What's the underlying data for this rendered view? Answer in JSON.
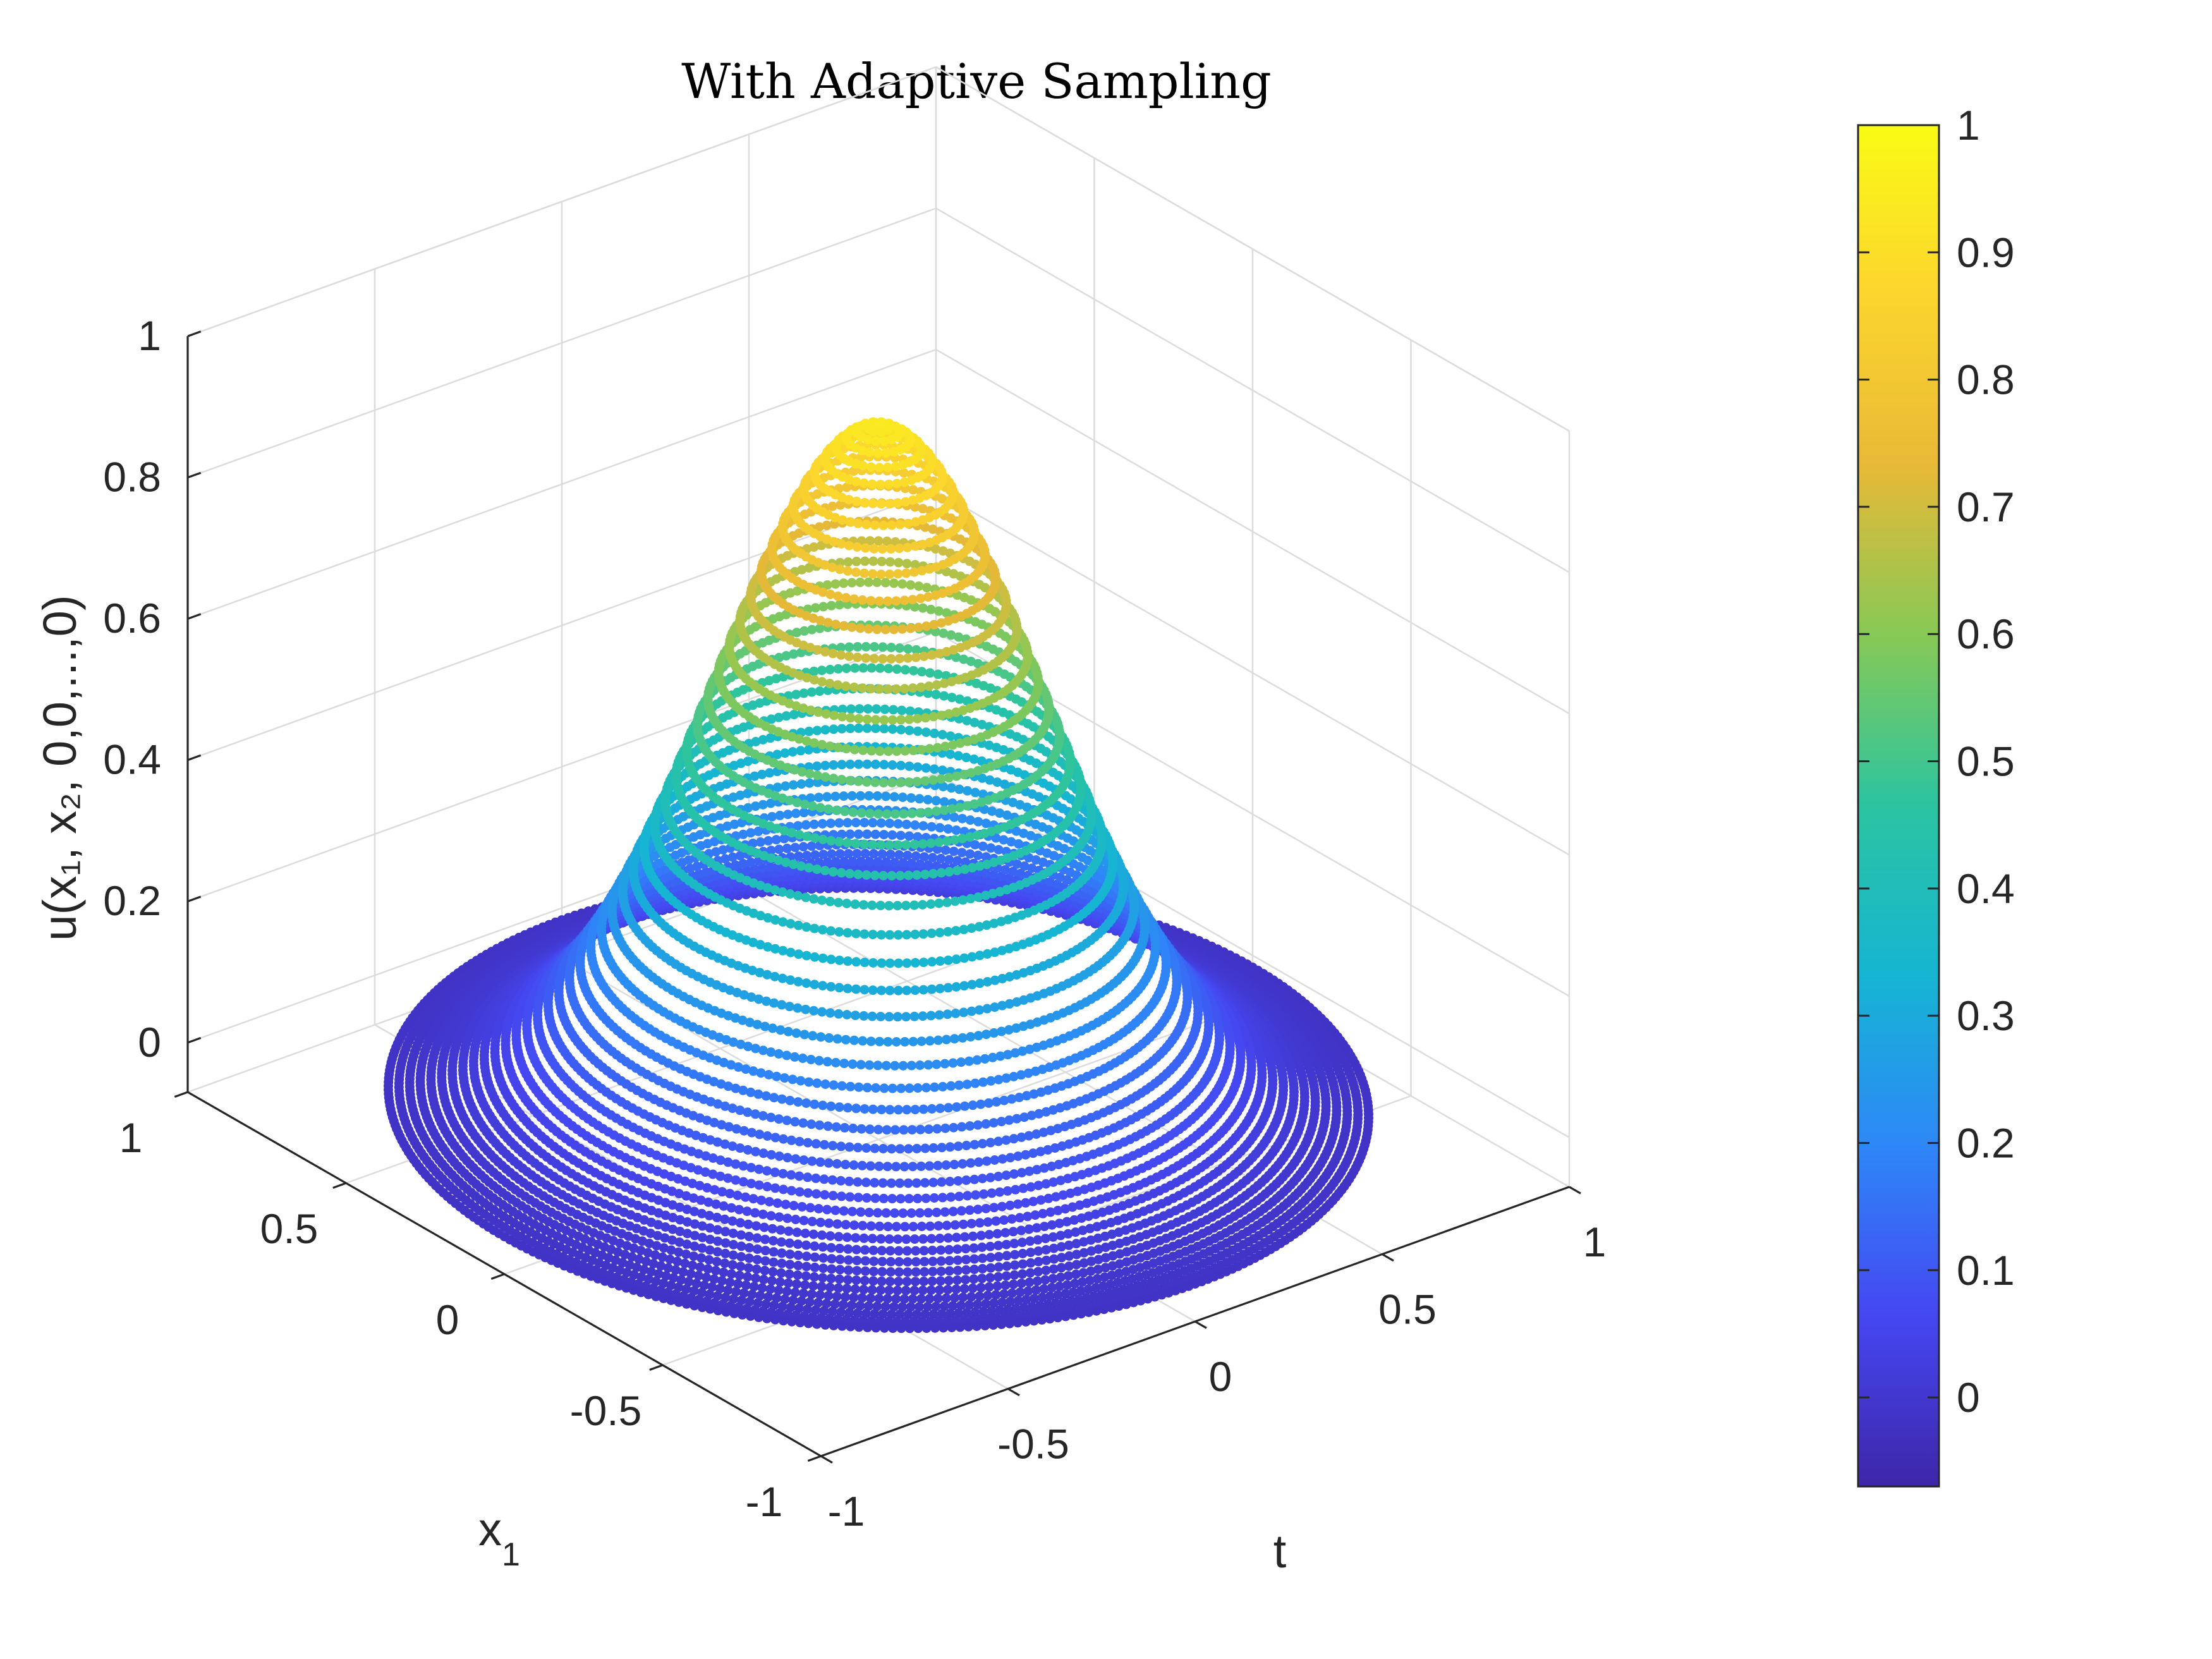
{
  "chart_data": {
    "type": "scatter",
    "subtype": "3d-scatter",
    "title": "With Adaptive Sampling",
    "xlabel": "t",
    "ylabel": "x",
    "ylabel_sub": "1",
    "zlabel": "u(x₁, x₂, 0,0,...,0)",
    "xlim": [
      -1,
      1
    ],
    "ylim": [
      -1,
      1
    ],
    "zlim": [
      -0.07,
      1
    ],
    "xticks": [
      "-1",
      "-0.5",
      "0",
      "0.5",
      "1"
    ],
    "yticks": [
      "-1",
      "-0.5",
      "0",
      "0.5",
      "1"
    ],
    "zticks": [
      "0",
      "0.2",
      "0.4",
      "0.6",
      "0.8",
      "1"
    ],
    "grid": true,
    "domain": "unit disk in (t, x1), sampled on concentric rings",
    "function": "u = exp(-4 (t^2 + x1^2)) approx, peak 0.97 at (0,0)",
    "peak_value": 0.97,
    "colormap": "parula",
    "colorbar": {
      "position": "right",
      "limits": [
        -0.07,
        1
      ],
      "ticks": [
        "0",
        "0.1",
        "0.2",
        "0.3",
        "0.4",
        "0.5",
        "0.6",
        "0.7",
        "0.8",
        "0.9",
        "1"
      ]
    }
  }
}
